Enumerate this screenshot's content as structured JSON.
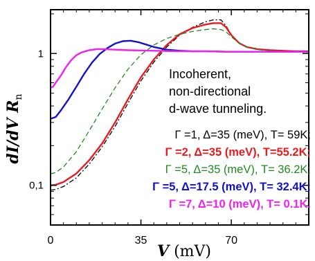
{
  "chart_data": {
    "type": "line",
    "title": "",
    "xlabel_var": "V",
    "xlabel_unit": " (mV)",
    "ylabel_num": "dI/dV R",
    "ylabel_sub": "n",
    "xlim": [
      0,
      100
    ],
    "ylim": [
      0.05,
      2.15
    ],
    "yscale": "log",
    "grid": false,
    "x_ticks": [
      0,
      35,
      70
    ],
    "x_tick_labels": [
      "0",
      "35",
      "70"
    ],
    "y_ticks": [
      0.1,
      1
    ],
    "y_tick_labels": [
      "0,1",
      "1"
    ],
    "annotation": [
      "Incoherent,",
      "non-directional",
      "d-wave tunneling."
    ],
    "legend_placement": "lower-right",
    "series": [
      {
        "label": "Γ =1, Δ=35 (meV), T= 59K;",
        "color": "#000000",
        "style": "dashdot",
        "bold": false,
        "x": [
          0,
          2,
          5,
          10,
          15,
          20,
          25,
          30,
          35,
          40,
          45,
          50,
          55,
          60,
          63,
          66,
          68,
          70,
          73,
          76,
          80,
          85,
          90,
          95,
          100
        ],
        "y": [
          0.092,
          0.093,
          0.098,
          0.114,
          0.145,
          0.196,
          0.28,
          0.42,
          0.62,
          0.86,
          1.12,
          1.38,
          1.58,
          1.74,
          1.8,
          1.8,
          1.62,
          1.38,
          1.2,
          1.12,
          1.08,
          1.06,
          1.05,
          1.04,
          1.04
        ]
      },
      {
        "label": "Γ =2, Δ=35 (meV), T=55.2K;",
        "color": "#e8191f",
        "style": "solid",
        "bold": true,
        "x": [
          0,
          2,
          5,
          10,
          15,
          20,
          25,
          30,
          35,
          40,
          45,
          50,
          55,
          60,
          63,
          66,
          68,
          70,
          73,
          76,
          80,
          85,
          90,
          95,
          100
        ],
        "y": [
          0.1,
          0.101,
          0.106,
          0.123,
          0.155,
          0.208,
          0.3,
          0.45,
          0.66,
          0.9,
          1.16,
          1.4,
          1.56,
          1.66,
          1.7,
          1.7,
          1.58,
          1.38,
          1.2,
          1.12,
          1.08,
          1.06,
          1.05,
          1.04,
          1.04
        ]
      },
      {
        "label": "Γ =5, Δ=35 (meV), T= 36.2K;",
        "color": "#1e8a1e",
        "style": "dashed",
        "bold": false,
        "x": [
          0,
          2,
          5,
          10,
          15,
          20,
          25,
          30,
          35,
          40,
          45,
          50,
          55,
          60,
          63,
          66,
          68,
          70,
          73,
          76,
          80,
          85,
          90,
          95,
          100
        ],
        "y": [
          0.122,
          0.125,
          0.138,
          0.18,
          0.26,
          0.38,
          0.55,
          0.76,
          0.98,
          1.16,
          1.3,
          1.4,
          1.47,
          1.52,
          1.54,
          1.52,
          1.46,
          1.34,
          1.2,
          1.12,
          1.07,
          1.05,
          1.04,
          1.03,
          1.03
        ]
      },
      {
        "label": "Γ =5, Δ=17.5 (meV), T= 32.4K;",
        "color": "#1010d0",
        "style": "solid",
        "bold": true,
        "x": [
          0,
          2,
          4,
          7,
          10,
          13,
          16,
          19,
          22,
          25,
          28,
          31,
          34,
          37,
          40,
          45,
          50,
          55,
          60,
          70,
          80,
          90,
          100
        ],
        "y": [
          0.32,
          0.33,
          0.37,
          0.45,
          0.56,
          0.7,
          0.85,
          0.99,
          1.1,
          1.19,
          1.24,
          1.25,
          1.22,
          1.17,
          1.12,
          1.07,
          1.05,
          1.04,
          1.04,
          1.03,
          1.03,
          1.03,
          1.03
        ]
      },
      {
        "label": "Γ =7, Δ=10 (meV), T= 0.1K.",
        "color": "#f020f0",
        "style": "solid",
        "bold": true,
        "x": [
          0,
          1,
          2,
          4,
          6,
          8,
          10,
          12,
          15,
          18,
          20,
          25,
          30,
          40,
          50,
          60,
          70,
          80,
          90,
          100
        ],
        "y": [
          0.55,
          0.56,
          0.6,
          0.68,
          0.79,
          0.89,
          0.97,
          1.02,
          1.06,
          1.08,
          1.08,
          1.07,
          1.06,
          1.05,
          1.04,
          1.04,
          1.03,
          1.03,
          1.03,
          1.03
        ]
      }
    ]
  }
}
